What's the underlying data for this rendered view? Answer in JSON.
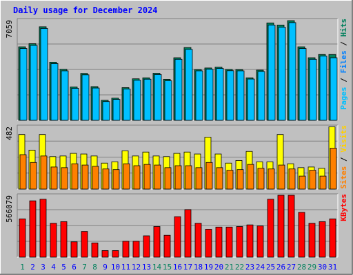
{
  "chart_data": {
    "type": "bar",
    "title": "Daily usage for December 2024",
    "days": [
      "1",
      "2",
      "3",
      "4",
      "5",
      "6",
      "7",
      "8",
      "9",
      "10",
      "11",
      "12",
      "13",
      "14",
      "15",
      "16",
      "17",
      "18",
      "19",
      "20",
      "21",
      "22",
      "23",
      "24",
      "25",
      "26",
      "27",
      "28",
      "29",
      "30",
      "31"
    ],
    "weekend_days": [
      "1",
      "7",
      "8",
      "14",
      "15",
      "21",
      "22",
      "28",
      "29"
    ],
    "panels": [
      {
        "id": "hits-files-pages",
        "max_label": "7059",
        "ymax": 7059,
        "side_label_parts": [
          "Pages",
          " / ",
          "Files",
          " / ",
          "Hits"
        ],
        "series": [
          {
            "name": "Hits",
            "color": "#008040",
            "values": [
              5170,
              5390,
              6580,
              4090,
              3590,
              2350,
              3300,
              2370,
              1410,
              1560,
              2300,
              2920,
              2990,
              3310,
              2880,
              4400,
              5120,
              3570,
              3680,
              3740,
              3580,
              3570,
              2990,
              3530,
              6850,
              6700,
              7010,
              5170,
              4400,
              4630,
              4630
            ]
          },
          {
            "name": "Files",
            "color": "#00c0ff",
            "values": [
              5050,
              5270,
              6460,
              3990,
              3480,
              2250,
              3200,
              2270,
              1320,
              1470,
              2200,
              2820,
              2890,
              3220,
              2780,
              4290,
              4990,
              3480,
              3590,
              3650,
              3490,
              3480,
              2900,
              3430,
              6700,
              6550,
              6870,
              5050,
              4290,
              4520,
              4400
            ]
          },
          {
            "name": "Pages",
            "color": "#00c0ff",
            "values": []
          }
        ]
      },
      {
        "id": "visits-sites",
        "max_label": "482",
        "ymax": 482,
        "side_label_parts": [
          "Sites",
          " / ",
          "Visits"
        ],
        "series": [
          {
            "name": "Visits",
            "color": "#ffff00",
            "values": [
              420,
              300,
              420,
              250,
              255,
              275,
              270,
              255,
              200,
              210,
              295,
              255,
              285,
              255,
              250,
              275,
              285,
              270,
              400,
              270,
              200,
              220,
              290,
              210,
              210,
              420,
              195,
              165,
              170,
              160,
              480
            ]
          },
          {
            "name": "Sites",
            "color": "#ff8000",
            "values": [
              265,
              205,
              255,
              170,
              165,
              195,
              185,
              175,
              155,
              150,
              195,
              180,
              190,
              185,
              165,
              180,
              180,
              165,
              205,
              165,
              145,
              150,
              190,
              160,
              155,
              185,
              155,
              100,
              145,
              100,
              315
            ]
          }
        ]
      },
      {
        "id": "kbytes",
        "max_label": "566079",
        "ymax": 566079,
        "side_label_parts": [
          "KBytes"
        ],
        "series": [
          {
            "name": "KBytes",
            "color": "#ff0000",
            "values": [
              350000,
              515000,
              530000,
              310000,
              325000,
              140000,
              235000,
              130000,
              60000,
              60000,
              145000,
              145000,
              195000,
              280000,
              200000,
              370000,
              435000,
              310000,
              255000,
              275000,
              275000,
              280000,
              295000,
              285000,
              530000,
              566000,
              566000,
              410000,
              310000,
              325000,
              350000
            ]
          }
        ]
      }
    ],
    "colors": {
      "title": "#0000ff",
      "plot_bg": "#c0c0c0",
      "grid": "#808080",
      "weekday_label": "#0000ff",
      "weekend_label": "#00805c",
      "pages": "#00c0ff",
      "files": "#0080ff",
      "hits": "#00805c",
      "separator": "#000000",
      "sites": "#ff8000",
      "visits": "#ffd000",
      "kbytes": "#ff0000"
    }
  }
}
